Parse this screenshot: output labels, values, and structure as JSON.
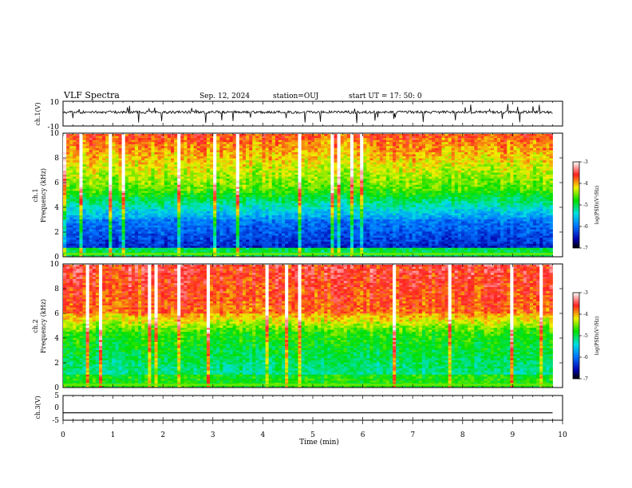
{
  "header": {
    "title": "VLF Spectra",
    "date": "Sep. 12, 2024",
    "station": "station=OUJ",
    "start_ut": "start  UT =   17: 50: 0"
  },
  "chart_data": {
    "type": "heatmap",
    "x": {
      "label": "Time (min)",
      "lim": [
        0,
        10
      ],
      "ticks": [
        "0",
        "1",
        "2",
        "3",
        "4",
        "5",
        "6",
        "7",
        "8",
        "9",
        "10"
      ]
    },
    "panels": [
      {
        "id": "ch1_wave",
        "type": "line",
        "ylabel": "ch.1(V)",
        "ylim": [
          -10,
          10
        ],
        "ticks": [
          "10",
          "-10"
        ]
      },
      {
        "id": "ch1_spec",
        "type": "heatmap",
        "ylabel_top": "ch.1",
        "ylabel": "Frequency (kHz)",
        "ylim": [
          0,
          10
        ],
        "ticks": [
          "0",
          "2",
          "4",
          "6",
          "8",
          "10"
        ],
        "colorbar": {
          "label": "log(PSD)(V²/Hz)",
          "range": [
            -7,
            -3
          ],
          "ticks": [
            "-3",
            "-4",
            "-5",
            "-6",
            "-7"
          ]
        }
      },
      {
        "id": "ch2_spec",
        "type": "heatmap",
        "ylabel_top": "ch.2",
        "ylabel": "Frequency (kHz)",
        "ylim": [
          0,
          10
        ],
        "ticks": [
          "0",
          "2",
          "4",
          "6",
          "8",
          "10"
        ],
        "colorbar": {
          "label": "log(PSD)(V²/Hz)",
          "range": [
            -7,
            -3
          ],
          "ticks": [
            "-3",
            "-4",
            "-5",
            "-6",
            "-7"
          ]
        }
      },
      {
        "id": "ch3_wave",
        "type": "line",
        "ylabel": "ch.3(V)",
        "ylim": [
          -5,
          5
        ],
        "ticks": [
          "5",
          "0",
          "-5"
        ],
        "constant_value": -2
      }
    ],
    "data_end_min": 9.8
  }
}
